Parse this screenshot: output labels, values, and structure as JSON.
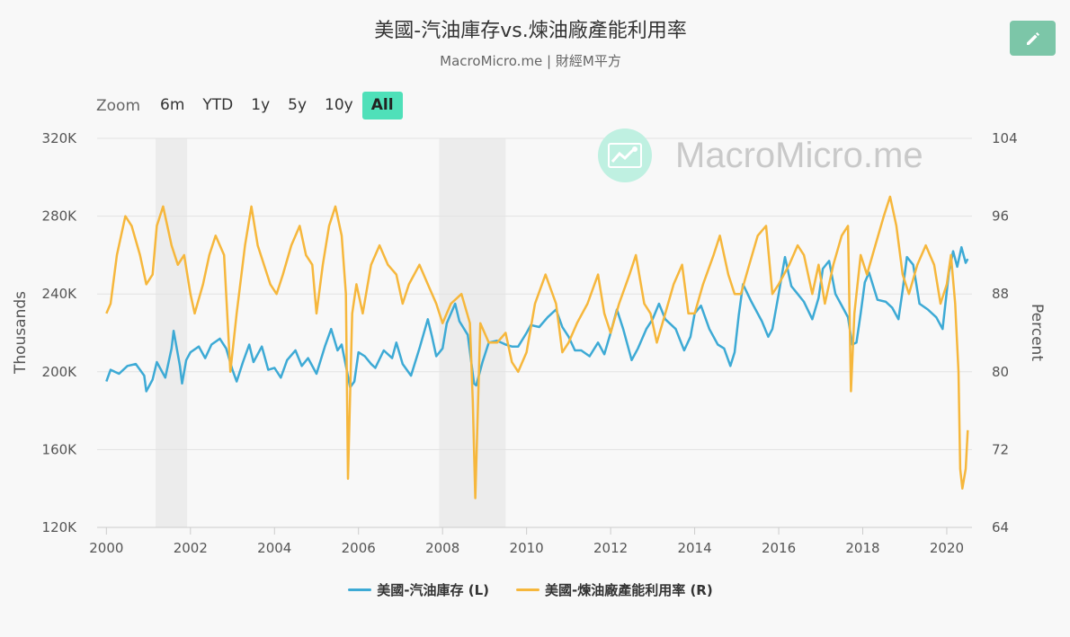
{
  "header": {
    "title": "美國-汽油庫存vs.煉油廠產能利用率",
    "subtitle": "MacroMicro.me | 財經M平方"
  },
  "toolbar": {
    "edit_icon": "pencil-icon",
    "zoom_label": "Zoom",
    "zoom_options": [
      "6m",
      "YTD",
      "1y",
      "5y",
      "10y",
      "All"
    ],
    "zoom_selected": "All"
  },
  "watermark": {
    "text": "MacroMicro.me",
    "icon": "chart-trend-icon"
  },
  "chart_data": {
    "type": "line",
    "x_range": [
      1999.95,
      2020.6
    ],
    "x_ticks": [
      2000,
      2002,
      2004,
      2006,
      2008,
      2010,
      2012,
      2014,
      2016,
      2018,
      2020
    ],
    "x_tick_labels": [
      "2000",
      "2002",
      "2004",
      "2006",
      "2008",
      "2010",
      "2012",
      "2014",
      "2016",
      "2018",
      "2020"
    ],
    "y_left": {
      "label": "Thousands",
      "range": [
        120,
        320
      ],
      "ticks": [
        120,
        160,
        200,
        240,
        280,
        320
      ],
      "tick_labels": [
        "120K",
        "160K",
        "200K",
        "240K",
        "280K",
        "320K"
      ]
    },
    "y_right": {
      "label": "Percent",
      "range": [
        64,
        104
      ],
      "ticks": [
        64,
        72,
        80,
        88,
        96,
        104
      ],
      "tick_labels": [
        "64",
        "72",
        "80",
        "88",
        "96",
        "104"
      ]
    },
    "recession_bands": [
      [
        2001.17,
        2001.92
      ],
      [
        2007.92,
        2009.5
      ]
    ],
    "grid": "horizontal",
    "legend_position": "bottom-center",
    "series": [
      {
        "name": "美國-汽油庫存 (L)",
        "axis": "left",
        "color": "#3daad5",
        "points": [
          [
            2000.0,
            195
          ],
          [
            2000.1,
            201
          ],
          [
            2000.3,
            199
          ],
          [
            2000.5,
            203
          ],
          [
            2000.7,
            204
          ],
          [
            2000.9,
            198
          ],
          [
            2000.95,
            190
          ],
          [
            2001.1,
            196
          ],
          [
            2001.2,
            205
          ],
          [
            2001.4,
            197
          ],
          [
            2001.55,
            212
          ],
          [
            2001.6,
            221
          ],
          [
            2001.75,
            203
          ],
          [
            2001.8,
            194
          ],
          [
            2001.9,
            206
          ],
          [
            2002.0,
            210
          ],
          [
            2002.2,
            213
          ],
          [
            2002.35,
            207
          ],
          [
            2002.5,
            214
          ],
          [
            2002.7,
            217
          ],
          [
            2002.85,
            212
          ],
          [
            2003.0,
            201
          ],
          [
            2003.1,
            195
          ],
          [
            2003.25,
            205
          ],
          [
            2003.4,
            214
          ],
          [
            2003.5,
            205
          ],
          [
            2003.7,
            213
          ],
          [
            2003.85,
            201
          ],
          [
            2004.0,
            202
          ],
          [
            2004.15,
            197
          ],
          [
            2004.3,
            206
          ],
          [
            2004.5,
            211
          ],
          [
            2004.65,
            203
          ],
          [
            2004.8,
            207
          ],
          [
            2005.0,
            199
          ],
          [
            2005.2,
            213
          ],
          [
            2005.35,
            222
          ],
          [
            2005.5,
            211
          ],
          [
            2005.6,
            214
          ],
          [
            2005.7,
            203
          ],
          [
            2005.8,
            192
          ],
          [
            2005.9,
            195
          ],
          [
            2006.0,
            210
          ],
          [
            2006.15,
            208
          ],
          [
            2006.3,
            204
          ],
          [
            2006.4,
            202
          ],
          [
            2006.6,
            211
          ],
          [
            2006.8,
            207
          ],
          [
            2006.9,
            215
          ],
          [
            2007.05,
            204
          ],
          [
            2007.25,
            198
          ],
          [
            2007.45,
            212
          ],
          [
            2007.65,
            227
          ],
          [
            2007.75,
            218
          ],
          [
            2007.85,
            208
          ],
          [
            2008.0,
            212
          ],
          [
            2008.1,
            225
          ],
          [
            2008.3,
            235
          ],
          [
            2008.4,
            226
          ],
          [
            2008.6,
            219
          ],
          [
            2008.75,
            194
          ],
          [
            2008.8,
            193
          ],
          [
            2008.95,
            205
          ],
          [
            2009.1,
            215
          ],
          [
            2009.3,
            216
          ],
          [
            2009.5,
            214
          ],
          [
            2009.65,
            213
          ],
          [
            2009.8,
            213
          ],
          [
            2010.0,
            220
          ],
          [
            2010.1,
            224
          ],
          [
            2010.3,
            223
          ],
          [
            2010.5,
            228
          ],
          [
            2010.7,
            232
          ],
          [
            2010.85,
            223
          ],
          [
            2011.0,
            218
          ],
          [
            2011.15,
            211
          ],
          [
            2011.3,
            211
          ],
          [
            2011.5,
            208
          ],
          [
            2011.7,
            215
          ],
          [
            2011.85,
            209
          ],
          [
            2012.0,
            220
          ],
          [
            2012.15,
            232
          ],
          [
            2012.3,
            222
          ],
          [
            2012.5,
            206
          ],
          [
            2012.65,
            212
          ],
          [
            2012.85,
            222
          ],
          [
            2013.0,
            227
          ],
          [
            2013.15,
            235
          ],
          [
            2013.3,
            227
          ],
          [
            2013.55,
            222
          ],
          [
            2013.75,
            211
          ],
          [
            2013.9,
            218
          ],
          [
            2014.0,
            230
          ],
          [
            2014.15,
            234
          ],
          [
            2014.35,
            222
          ],
          [
            2014.55,
            214
          ],
          [
            2014.7,
            212
          ],
          [
            2014.85,
            203
          ],
          [
            2014.95,
            210
          ],
          [
            2015.05,
            229
          ],
          [
            2015.15,
            245
          ],
          [
            2015.35,
            236
          ],
          [
            2015.6,
            226
          ],
          [
            2015.75,
            218
          ],
          [
            2015.85,
            222
          ],
          [
            2016.0,
            240
          ],
          [
            2016.15,
            259
          ],
          [
            2016.3,
            244
          ],
          [
            2016.45,
            240
          ],
          [
            2016.6,
            236
          ],
          [
            2016.8,
            227
          ],
          [
            2016.95,
            238
          ],
          [
            2017.05,
            253
          ],
          [
            2017.2,
            257
          ],
          [
            2017.35,
            240
          ],
          [
            2017.55,
            232
          ],
          [
            2017.65,
            228
          ],
          [
            2017.75,
            214
          ],
          [
            2017.85,
            215
          ],
          [
            2017.95,
            230
          ],
          [
            2018.05,
            246
          ],
          [
            2018.15,
            251
          ],
          [
            2018.35,
            237
          ],
          [
            2018.55,
            236
          ],
          [
            2018.7,
            233
          ],
          [
            2018.85,
            227
          ],
          [
            2018.95,
            242
          ],
          [
            2019.05,
            259
          ],
          [
            2019.2,
            255
          ],
          [
            2019.35,
            235
          ],
          [
            2019.55,
            232
          ],
          [
            2019.75,
            228
          ],
          [
            2019.9,
            222
          ],
          [
            2020.05,
            251
          ],
          [
            2020.15,
            262
          ],
          [
            2020.25,
            254
          ],
          [
            2020.35,
            264
          ],
          [
            2020.45,
            256
          ],
          [
            2020.5,
            258
          ]
        ]
      },
      {
        "name": "美國-煉油廠產能利用率 (R)",
        "axis": "right",
        "color": "#f6b73c",
        "points": [
          [
            2000.0,
            86
          ],
          [
            2000.1,
            87
          ],
          [
            2000.25,
            92
          ],
          [
            2000.45,
            96
          ],
          [
            2000.6,
            95
          ],
          [
            2000.8,
            92
          ],
          [
            2000.95,
            89
          ],
          [
            2001.1,
            90
          ],
          [
            2001.2,
            95
          ],
          [
            2001.35,
            97
          ],
          [
            2001.55,
            93
          ],
          [
            2001.7,
            91
          ],
          [
            2001.85,
            92
          ],
          [
            2002.0,
            88
          ],
          [
            2002.1,
            86
          ],
          [
            2002.3,
            89
          ],
          [
            2002.45,
            92
          ],
          [
            2002.6,
            94
          ],
          [
            2002.8,
            92
          ],
          [
            2002.95,
            80
          ],
          [
            2003.1,
            86
          ],
          [
            2003.3,
            93
          ],
          [
            2003.45,
            97
          ],
          [
            2003.6,
            93
          ],
          [
            2003.75,
            91
          ],
          [
            2003.9,
            89
          ],
          [
            2004.05,
            88
          ],
          [
            2004.2,
            90
          ],
          [
            2004.4,
            93
          ],
          [
            2004.6,
            95
          ],
          [
            2004.75,
            92
          ],
          [
            2004.9,
            91
          ],
          [
            2005.0,
            86
          ],
          [
            2005.15,
            91
          ],
          [
            2005.3,
            95
          ],
          [
            2005.45,
            97
          ],
          [
            2005.6,
            94
          ],
          [
            2005.7,
            88
          ],
          [
            2005.75,
            69
          ],
          [
            2005.85,
            86
          ],
          [
            2005.95,
            89
          ],
          [
            2006.1,
            86
          ],
          [
            2006.3,
            91
          ],
          [
            2006.5,
            93
          ],
          [
            2006.7,
            91
          ],
          [
            2006.9,
            90
          ],
          [
            2007.05,
            87
          ],
          [
            2007.2,
            89
          ],
          [
            2007.45,
            91
          ],
          [
            2007.65,
            89
          ],
          [
            2007.85,
            87
          ],
          [
            2008.0,
            85
          ],
          [
            2008.2,
            87
          ],
          [
            2008.45,
            88
          ],
          [
            2008.65,
            85
          ],
          [
            2008.72,
            77
          ],
          [
            2008.78,
            67
          ],
          [
            2008.9,
            85
          ],
          [
            2009.1,
            83
          ],
          [
            2009.3,
            83
          ],
          [
            2009.5,
            84
          ],
          [
            2009.65,
            81
          ],
          [
            2009.8,
            80
          ],
          [
            2010.0,
            82
          ],
          [
            2010.2,
            87
          ],
          [
            2010.45,
            90
          ],
          [
            2010.7,
            87
          ],
          [
            2010.85,
            82
          ],
          [
            2011.0,
            83
          ],
          [
            2011.2,
            85
          ],
          [
            2011.45,
            87
          ],
          [
            2011.7,
            90
          ],
          [
            2011.85,
            86
          ],
          [
            2012.0,
            84
          ],
          [
            2012.2,
            87
          ],
          [
            2012.45,
            90
          ],
          [
            2012.6,
            92
          ],
          [
            2012.8,
            87
          ],
          [
            2012.95,
            86
          ],
          [
            2013.1,
            83
          ],
          [
            2013.3,
            86
          ],
          [
            2013.5,
            89
          ],
          [
            2013.7,
            91
          ],
          [
            2013.85,
            86
          ],
          [
            2014.0,
            86
          ],
          [
            2014.2,
            89
          ],
          [
            2014.45,
            92
          ],
          [
            2014.6,
            94
          ],
          [
            2014.8,
            90
          ],
          [
            2014.95,
            88
          ],
          [
            2015.1,
            88
          ],
          [
            2015.3,
            91
          ],
          [
            2015.5,
            94
          ],
          [
            2015.7,
            95
          ],
          [
            2015.85,
            88
          ],
          [
            2016.0,
            89
          ],
          [
            2016.25,
            91
          ],
          [
            2016.45,
            93
          ],
          [
            2016.6,
            92
          ],
          [
            2016.8,
            88
          ],
          [
            2016.95,
            91
          ],
          [
            2017.1,
            87
          ],
          [
            2017.3,
            91
          ],
          [
            2017.5,
            94
          ],
          [
            2017.65,
            95
          ],
          [
            2017.72,
            78
          ],
          [
            2017.8,
            86
          ],
          [
            2017.95,
            92
          ],
          [
            2018.1,
            90
          ],
          [
            2018.3,
            93
          ],
          [
            2018.5,
            96
          ],
          [
            2018.65,
            98
          ],
          [
            2018.8,
            95
          ],
          [
            2018.95,
            90
          ],
          [
            2019.1,
            88
          ],
          [
            2019.3,
            91
          ],
          [
            2019.5,
            93
          ],
          [
            2019.7,
            91
          ],
          [
            2019.85,
            87
          ],
          [
            2020.0,
            89
          ],
          [
            2020.1,
            92
          ],
          [
            2020.2,
            87
          ],
          [
            2020.28,
            80
          ],
          [
            2020.32,
            70
          ],
          [
            2020.37,
            68
          ],
          [
            2020.45,
            70
          ],
          [
            2020.5,
            74
          ]
        ]
      }
    ]
  }
}
